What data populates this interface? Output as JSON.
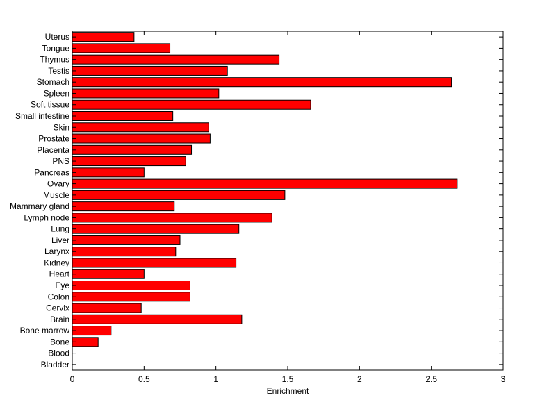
{
  "chart_data": {
    "type": "bar",
    "orientation": "horizontal",
    "title": "",
    "xlabel": "Enrichment",
    "ylabel": "",
    "xlim": [
      0,
      3
    ],
    "xticks": [
      0,
      0.5,
      1,
      1.5,
      2,
      2.5,
      3
    ],
    "xtick_labels": [
      "0",
      "0.5",
      "1",
      "1.5",
      "2",
      "2.5",
      "3"
    ],
    "grid": false,
    "legend": "none",
    "bar_color": "#ff0000",
    "categories": [
      "Uterus",
      "Tongue",
      "Thymus",
      "Testis",
      "Stomach",
      "Spleen",
      "Soft tissue",
      "Small intestine",
      "Skin",
      "Prostate",
      "Placenta",
      "PNS",
      "Pancreas",
      "Ovary",
      "Muscle",
      "Mammary gland",
      "Lymph node",
      "Lung",
      "Liver",
      "Larynx",
      "Kidney",
      "Heart",
      "Eye",
      "Colon",
      "Cervix",
      "Brain",
      "Bone marrow",
      "Bone",
      "Blood",
      "Bladder"
    ],
    "values": [
      0.43,
      0.68,
      1.44,
      1.08,
      2.64,
      1.02,
      1.66,
      0.7,
      0.95,
      0.96,
      0.83,
      0.79,
      0.5,
      2.68,
      1.48,
      0.71,
      1.39,
      1.16,
      0.75,
      0.72,
      1.14,
      0.5,
      0.82,
      0.82,
      0.48,
      1.18,
      0.27,
      0.18,
      0,
      0
    ]
  }
}
